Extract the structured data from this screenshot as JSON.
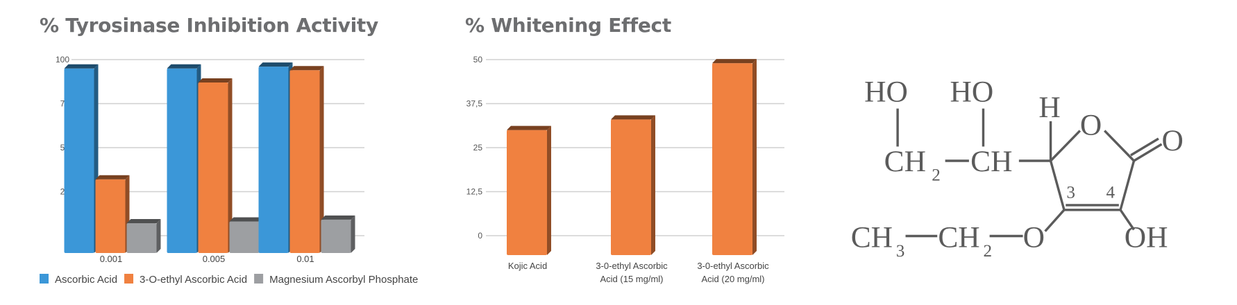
{
  "chart_data": [
    {
      "type": "bar",
      "title": "% Tyrosinase Inhibition Activity",
      "xlabel": "",
      "ylabel": "",
      "categories": [
        "0.001",
        "0.005",
        "0.01"
      ],
      "yticks": [
        "0",
        "25",
        "50",
        "75",
        "100"
      ],
      "ylim": [
        0,
        100
      ],
      "grid": true,
      "legend_position": "bottom",
      "series": [
        {
          "name": "Ascorbic Acid",
          "color": "#3b97d8",
          "values": [
            95,
            95,
            96
          ]
        },
        {
          "name": "3-O-ethyl Ascorbic Acid",
          "color": "#f08140",
          "values": [
            32,
            87,
            94
          ]
        },
        {
          "name": "Magnesium Ascorbyl Phosphate",
          "color": "#9d9fa2",
          "values": [
            0,
            1,
            2
          ]
        }
      ]
    },
    {
      "type": "bar",
      "title": "% Whitening Effect",
      "xlabel": "",
      "ylabel": "",
      "categories": [
        [
          "Kojic Acid"
        ],
        [
          "3-0-ethyl Ascorbic",
          "Acid (15 mg/ml)"
        ],
        [
          "3-0-ethyl Ascorbic",
          "Acid (20 mg/ml)"
        ]
      ],
      "yticks": [
        "0",
        "12,5",
        "25",
        "37,5",
        "50"
      ],
      "ylim": [
        0,
        50
      ],
      "grid": true,
      "series": [
        {
          "name": "Whitening Effect",
          "color": "#f08140",
          "values": [
            30,
            33,
            49
          ]
        }
      ]
    }
  ],
  "structure": {
    "labels": {
      "ho1": "HO",
      "ho2": "HO",
      "h": "H",
      "o_ring": "O",
      "o_keto": "O",
      "ch2_top": "CH",
      "ch2_top_sub": "2",
      "ch_top": "CH",
      "c3": "3",
      "c4": "4",
      "ch3": "CH",
      "ch3_sub": "3",
      "ch2_bottom": "CH",
      "ch2_bottom_sub": "2",
      "o_ether": "O",
      "oh": "OH"
    }
  }
}
